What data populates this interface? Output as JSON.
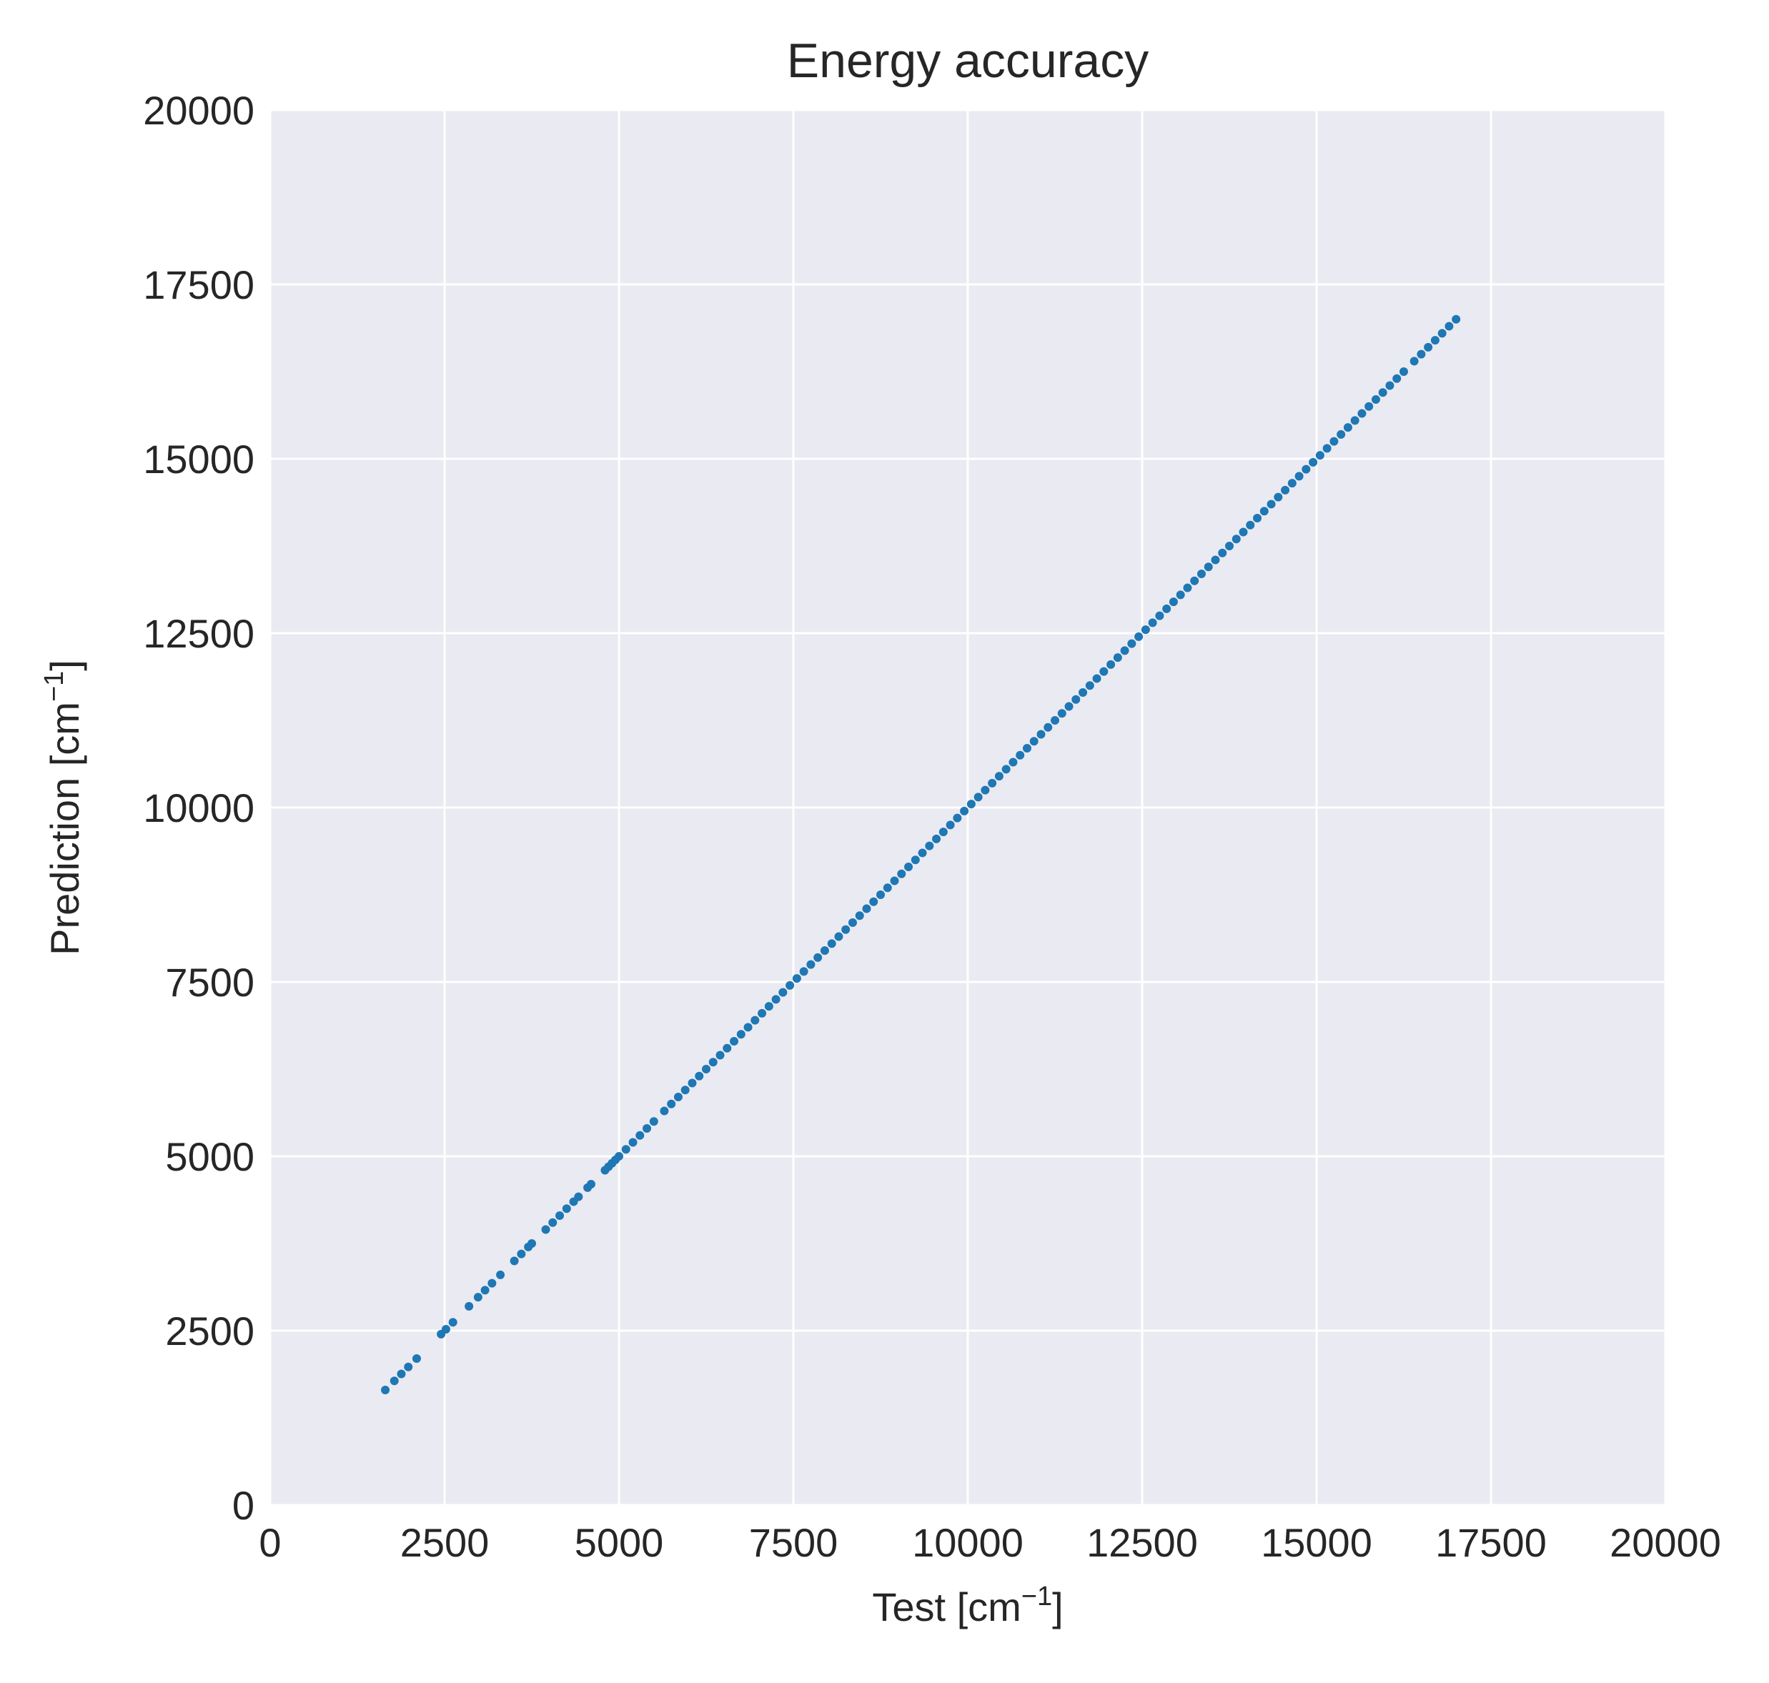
{
  "chart_data": {
    "type": "scatter",
    "title": "Energy accuracy",
    "xlabel": {
      "main": "Test [cm",
      "sup": "−1",
      "close": "]"
    },
    "ylabel": {
      "main": "Prediction [cm",
      "sup": "−1",
      "close": "]"
    },
    "xlim": [
      0,
      20000
    ],
    "ylim": [
      0,
      20000
    ],
    "xticks": [
      "0",
      "2500",
      "5000",
      "7500",
      "10000",
      "12500",
      "15000",
      "17500",
      "20000"
    ],
    "yticks": [
      "0",
      "2500",
      "5000",
      "7500",
      "10000",
      "12500",
      "15000",
      "17500",
      "20000"
    ],
    "grid": true,
    "series": [
      {
        "color": "#1f77b4",
        "x": [
          1650,
          1780,
          1880,
          1980,
          2100,
          2450,
          2520,
          2620,
          2850,
          2980,
          3080,
          3180,
          3300,
          3500,
          3600,
          3700,
          3750,
          3950,
          4050,
          4150,
          4250,
          4350,
          4420,
          4550,
          4600,
          4800,
          4850,
          4900,
          4950,
          5000,
          5100,
          5200,
          5300,
          5400,
          5500,
          5650,
          5750,
          5850,
          5950,
          6050,
          6150,
          6250,
          6350,
          6450,
          6550,
          6650,
          6750,
          6850,
          6950,
          7050,
          7150,
          7250,
          7350,
          7450,
          7550,
          7650,
          7750,
          7850,
          7950,
          8050,
          8150,
          8250,
          8350,
          8450,
          8550,
          8650,
          8750,
          8850,
          8950,
          9050,
          9150,
          9250,
          9350,
          9450,
          9550,
          9650,
          9750,
          9850,
          9950,
          10050,
          10150,
          10250,
          10350,
          10450,
          10550,
          10650,
          10750,
          10850,
          10950,
          11050,
          11150,
          11250,
          11350,
          11450,
          11550,
          11650,
          11750,
          11850,
          11950,
          12050,
          12150,
          12250,
          12350,
          12450,
          12550,
          12650,
          12750,
          12850,
          12950,
          13050,
          13150,
          13250,
          13350,
          13450,
          13550,
          13650,
          13750,
          13850,
          13950,
          14050,
          14150,
          14250,
          14350,
          14450,
          14550,
          14650,
          14750,
          14850,
          14950,
          15050,
          15150,
          15250,
          15350,
          15450,
          15550,
          15650,
          15750,
          15850,
          15950,
          16050,
          16150,
          16250,
          16400,
          16500,
          16600,
          16700,
          16800,
          16900,
          17000
        ],
        "y": [
          1650,
          1780,
          1880,
          1980,
          2100,
          2450,
          2520,
          2620,
          2850,
          2980,
          3080,
          3180,
          3300,
          3500,
          3600,
          3700,
          3750,
          3950,
          4050,
          4150,
          4250,
          4350,
          4420,
          4550,
          4600,
          4800,
          4850,
          4900,
          4950,
          5000,
          5100,
          5200,
          5300,
          5400,
          5500,
          5650,
          5750,
          5850,
          5950,
          6050,
          6150,
          6250,
          6350,
          6450,
          6550,
          6650,
          6750,
          6850,
          6950,
          7050,
          7150,
          7250,
          7350,
          7450,
          7550,
          7650,
          7750,
          7850,
          7950,
          8050,
          8150,
          8250,
          8350,
          8450,
          8550,
          8650,
          8750,
          8850,
          8950,
          9050,
          9150,
          9250,
          9350,
          9450,
          9550,
          9650,
          9750,
          9850,
          9950,
          10050,
          10150,
          10250,
          10350,
          10450,
          10550,
          10650,
          10750,
          10850,
          10950,
          11050,
          11150,
          11250,
          11350,
          11450,
          11550,
          11650,
          11750,
          11850,
          11950,
          12050,
          12150,
          12250,
          12350,
          12450,
          12550,
          12650,
          12750,
          12850,
          12950,
          13050,
          13150,
          13250,
          13350,
          13450,
          13550,
          13650,
          13750,
          13850,
          13950,
          14050,
          14150,
          14250,
          14350,
          14450,
          14550,
          14650,
          14750,
          14850,
          14950,
          15050,
          15150,
          15250,
          15350,
          15450,
          15550,
          15650,
          15750,
          15850,
          15950,
          16050,
          16150,
          16250,
          16400,
          16500,
          16600,
          16700,
          16800,
          16900,
          17000
        ]
      }
    ]
  }
}
